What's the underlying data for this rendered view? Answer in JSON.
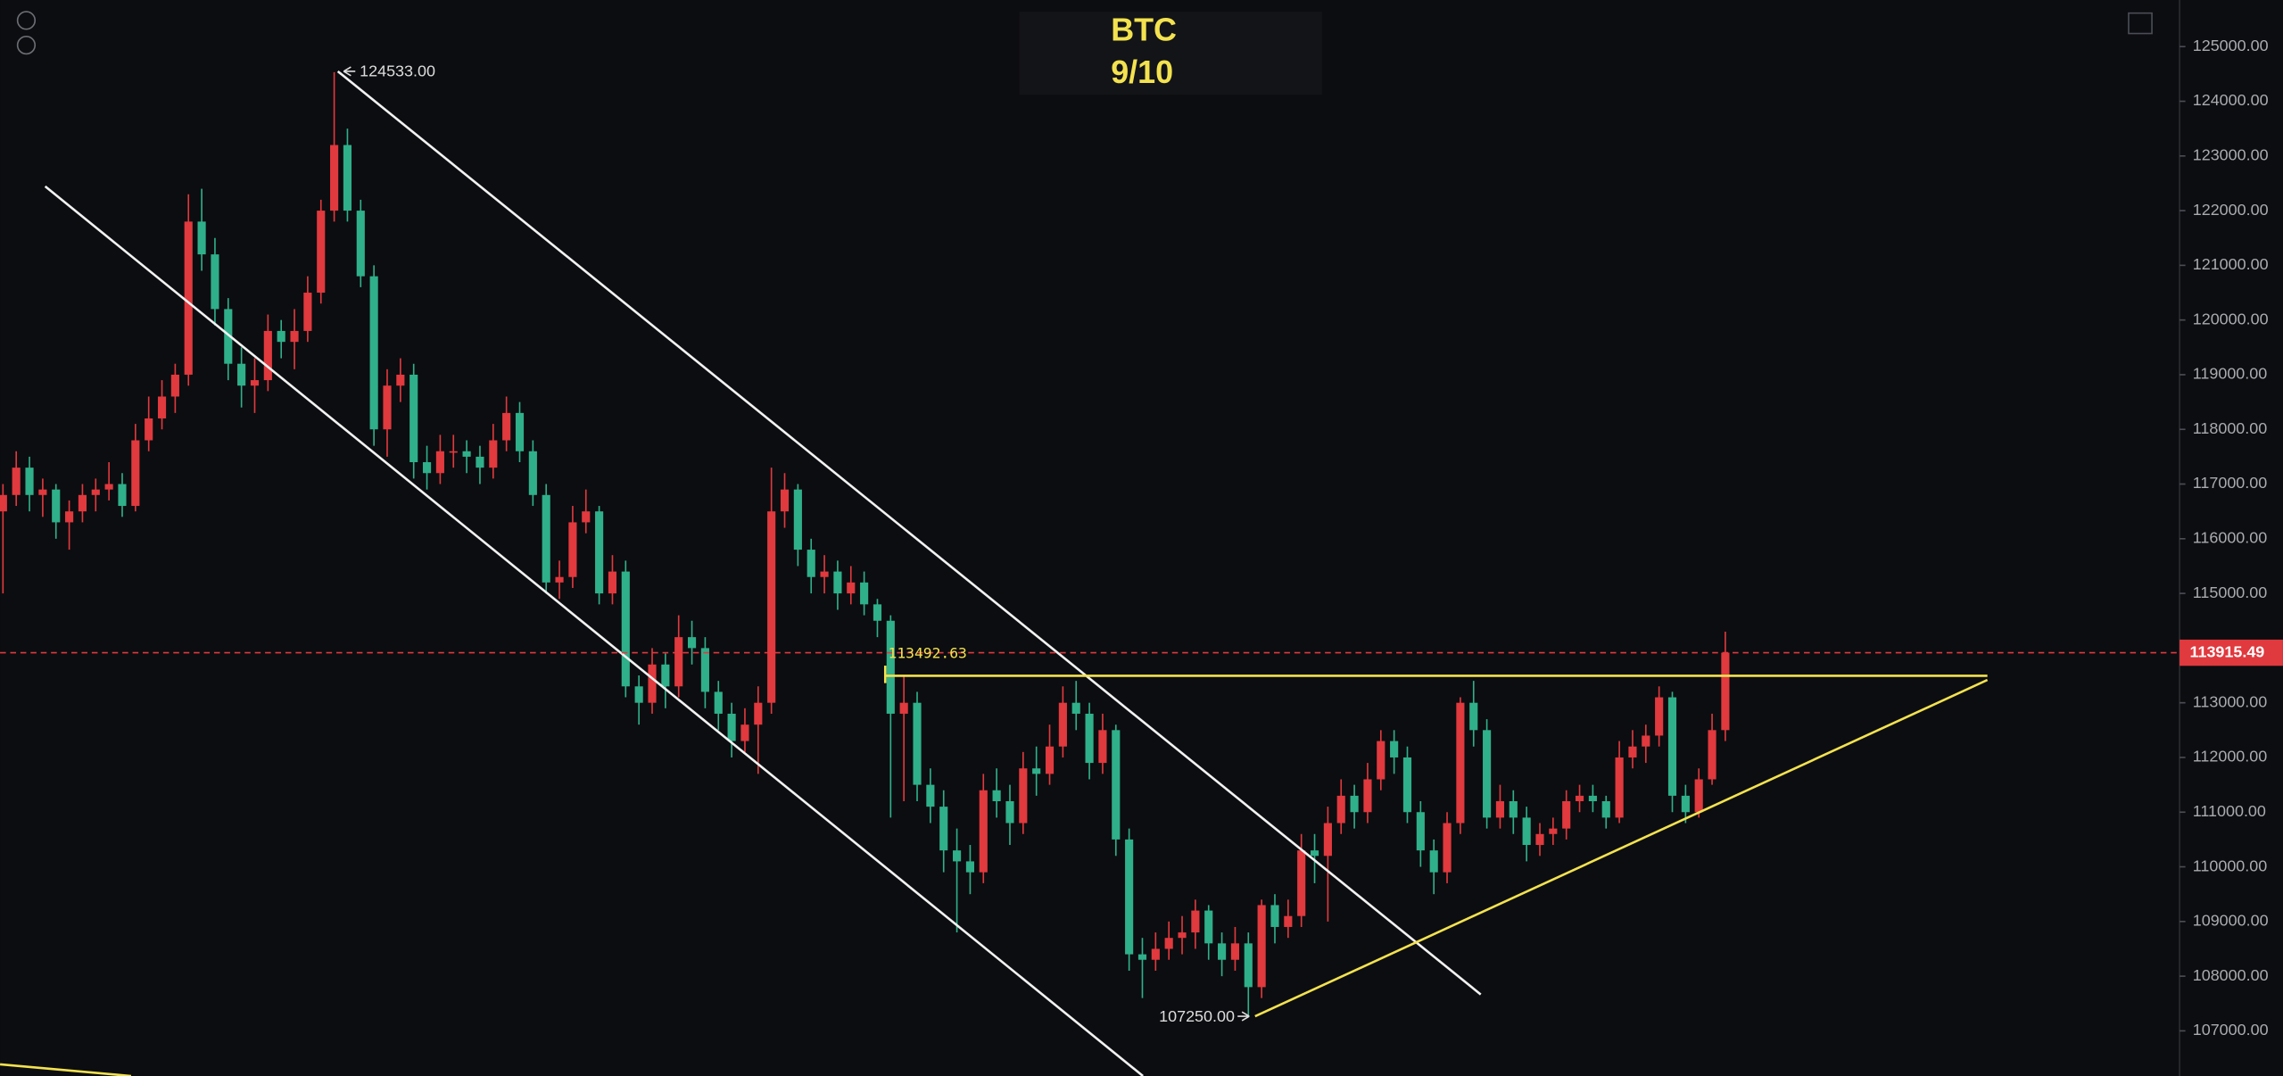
{
  "chart_data": {
    "type": "candlestick",
    "title": "BTC",
    "subtitle": "9/10",
    "up_color": "#e0393e",
    "down_color": "#2fb08a",
    "ylim": [
      107000,
      125000
    ],
    "yticks": [
      {
        "value": 125000,
        "label": "125000.00"
      },
      {
        "value": 124000,
        "label": "124000.00"
      },
      {
        "value": 123000,
        "label": "123000.00"
      },
      {
        "value": 122000,
        "label": "122000.00"
      },
      {
        "value": 121000,
        "label": "121000.00"
      },
      {
        "value": 120000,
        "label": "120000.00"
      },
      {
        "value": 119000,
        "label": "119000.00"
      },
      {
        "value": 118000,
        "label": "118000.00"
      },
      {
        "value": 117000,
        "label": "117000.00"
      },
      {
        "value": 116000,
        "label": "116000.00"
      },
      {
        "value": 115000,
        "label": "115000.00"
      },
      {
        "value": 114000,
        "label": "114000.00"
      },
      {
        "value": 113000,
        "label": "113000.00"
      },
      {
        "value": 112000,
        "label": "112000.00"
      },
      {
        "value": 111000,
        "label": "111000.00"
      },
      {
        "value": 110000,
        "label": "110000.00"
      },
      {
        "value": 109000,
        "label": "109000.00"
      },
      {
        "value": 108000,
        "label": "108000.00"
      },
      {
        "value": 107000,
        "label": "107000.00"
      }
    ],
    "last_price": 113915.49,
    "resistance": 113492.63,
    "high_label": {
      "value": 124533,
      "label": "124533.00"
    },
    "low_label": {
      "value": 107250,
      "label": "107250.00"
    },
    "ohlc": [
      [
        116500,
        117000,
        115000,
        116800
      ],
      [
        116800,
        117600,
        116600,
        117300
      ],
      [
        117300,
        117500,
        116500,
        116800
      ],
      [
        116800,
        117100,
        116400,
        116900
      ],
      [
        116900,
        117000,
        116000,
        116300
      ],
      [
        116300,
        116700,
        115800,
        116500
      ],
      [
        116500,
        117000,
        116300,
        116800
      ],
      [
        116800,
        117100,
        116500,
        116900
      ],
      [
        116900,
        117400,
        116700,
        117000
      ],
      [
        117000,
        117200,
        116400,
        116600
      ],
      [
        116600,
        118100,
        116500,
        117800
      ],
      [
        117800,
        118600,
        117600,
        118200
      ],
      [
        118200,
        118900,
        118000,
        118600
      ],
      [
        118600,
        119200,
        118300,
        119000
      ],
      [
        119000,
        122300,
        118800,
        121800
      ],
      [
        121800,
        122400,
        120900,
        121200
      ],
      [
        121200,
        121500,
        119900,
        120200
      ],
      [
        120200,
        120400,
        118900,
        119200
      ],
      [
        119200,
        119500,
        118400,
        118800
      ],
      [
        118800,
        119300,
        118300,
        118900
      ],
      [
        118900,
        120100,
        118700,
        119800
      ],
      [
        119800,
        120000,
        119300,
        119600
      ],
      [
        119600,
        120200,
        119100,
        119800
      ],
      [
        119800,
        120800,
        119600,
        120500
      ],
      [
        120500,
        122200,
        120300,
        122000
      ],
      [
        122000,
        124533,
        121800,
        123200
      ],
      [
        123200,
        123500,
        121800,
        122000
      ],
      [
        122000,
        122200,
        120600,
        120800
      ],
      [
        120800,
        121000,
        117700,
        118000
      ],
      [
        118000,
        119100,
        117500,
        118800
      ],
      [
        118800,
        119300,
        118500,
        119000
      ],
      [
        119000,
        119200,
        117100,
        117400
      ],
      [
        117400,
        117700,
        116900,
        117200
      ],
      [
        117200,
        117900,
        117000,
        117600
      ],
      [
        117600,
        117900,
        117300,
        117600
      ],
      [
        117600,
        117800,
        117200,
        117500
      ],
      [
        117500,
        117700,
        117000,
        117300
      ],
      [
        117300,
        118100,
        117100,
        117800
      ],
      [
        117800,
        118600,
        117600,
        118300
      ],
      [
        118300,
        118500,
        117400,
        117600
      ],
      [
        117600,
        117800,
        116600,
        116800
      ],
      [
        116800,
        117000,
        115000,
        115200
      ],
      [
        115200,
        115600,
        114900,
        115300
      ],
      [
        115300,
        116600,
        115100,
        116300
      ],
      [
        116300,
        116900,
        116100,
        116500
      ],
      [
        116500,
        116600,
        114800,
        115000
      ],
      [
        115000,
        115700,
        114800,
        115400
      ],
      [
        115400,
        115600,
        113100,
        113300
      ],
      [
        113300,
        113500,
        112600,
        113000
      ],
      [
        113000,
        114000,
        112800,
        113700
      ],
      [
        113700,
        113900,
        112900,
        113300
      ],
      [
        113300,
        114600,
        113100,
        114200
      ],
      [
        114200,
        114500,
        113700,
        114000
      ],
      [
        114000,
        114200,
        112900,
        113200
      ],
      [
        113200,
        113400,
        112500,
        112800
      ],
      [
        112800,
        113000,
        112000,
        112300
      ],
      [
        112300,
        112900,
        112100,
        112600
      ],
      [
        112600,
        113300,
        111700,
        113000
      ],
      [
        113000,
        117300,
        112800,
        116500
      ],
      [
        116500,
        117200,
        116200,
        116900
      ],
      [
        116900,
        117000,
        115500,
        115800
      ],
      [
        115800,
        116000,
        115000,
        115300
      ],
      [
        115300,
        115700,
        115000,
        115400
      ],
      [
        115400,
        115600,
        114700,
        115000
      ],
      [
        115000,
        115500,
        114800,
        115200
      ],
      [
        115200,
        115400,
        114600,
        114800
      ],
      [
        114800,
        114900,
        114200,
        114500
      ],
      [
        114500,
        114600,
        110900,
        112800
      ],
      [
        112800,
        113500,
        111200,
        113000
      ],
      [
        113000,
        113200,
        111200,
        111500
      ],
      [
        111500,
        111800,
        110800,
        111100
      ],
      [
        111100,
        111400,
        109900,
        110300
      ],
      [
        110300,
        110700,
        108800,
        110100
      ],
      [
        110100,
        110400,
        109500,
        109900
      ],
      [
        109900,
        111700,
        109700,
        111400
      ],
      [
        111400,
        111800,
        110900,
        111200
      ],
      [
        111200,
        111500,
        110400,
        110800
      ],
      [
        110800,
        112100,
        110600,
        111800
      ],
      [
        111800,
        112200,
        111300,
        111700
      ],
      [
        111700,
        112600,
        111500,
        112200
      ],
      [
        112200,
        113300,
        112000,
        113000
      ],
      [
        113000,
        113400,
        112500,
        112800
      ],
      [
        112800,
        113000,
        111600,
        111900
      ],
      [
        111900,
        112800,
        111700,
        112500
      ],
      [
        112500,
        112600,
        110200,
        110500
      ],
      [
        110500,
        110700,
        108100,
        108400
      ],
      [
        108400,
        108700,
        107600,
        108300
      ],
      [
        108300,
        108800,
        108100,
        108500
      ],
      [
        108500,
        109000,
        108300,
        108700
      ],
      [
        108700,
        109100,
        108400,
        108800
      ],
      [
        108800,
        109400,
        108500,
        109200
      ],
      [
        109200,
        109300,
        108300,
        108600
      ],
      [
        108600,
        108800,
        108000,
        108300
      ],
      [
        108300,
        108900,
        108100,
        108600
      ],
      [
        108600,
        108800,
        107250,
        107800
      ],
      [
        107800,
        109400,
        107600,
        109300
      ],
      [
        109300,
        109500,
        108600,
        108900
      ],
      [
        108900,
        109400,
        108700,
        109100
      ],
      [
        109100,
        110600,
        108900,
        110300
      ],
      [
        110300,
        110600,
        109700,
        110200
      ],
      [
        110200,
        111100,
        109000,
        110800
      ],
      [
        110800,
        111600,
        110600,
        111300
      ],
      [
        111300,
        111500,
        110700,
        111000
      ],
      [
        111000,
        111900,
        110800,
        111600
      ],
      [
        111600,
        112500,
        111400,
        112300
      ],
      [
        112300,
        112500,
        111700,
        112000
      ],
      [
        112000,
        112200,
        110800,
        111000
      ],
      [
        111000,
        111200,
        110000,
        110300
      ],
      [
        110300,
        110500,
        109500,
        109900
      ],
      [
        109900,
        111000,
        109700,
        110800
      ],
      [
        110800,
        113100,
        110600,
        113000
      ],
      [
        113000,
        113400,
        112200,
        112500
      ],
      [
        112500,
        112700,
        110700,
        110900
      ],
      [
        110900,
        111500,
        110700,
        111200
      ],
      [
        111200,
        111400,
        110600,
        110900
      ],
      [
        110900,
        111100,
        110100,
        110400
      ],
      [
        110400,
        110800,
        110200,
        110600
      ],
      [
        110600,
        110900,
        110400,
        110700
      ],
      [
        110700,
        111400,
        110500,
        111200
      ],
      [
        111200,
        111500,
        111000,
        111300
      ],
      [
        111300,
        111500,
        111000,
        111200
      ],
      [
        111200,
        111300,
        110700,
        110900
      ],
      [
        110900,
        112300,
        110800,
        112000
      ],
      [
        112000,
        112500,
        111800,
        112200
      ],
      [
        112200,
        112600,
        111900,
        112400
      ],
      [
        112400,
        113300,
        112200,
        113100
      ],
      [
        113100,
        113200,
        111000,
        111300
      ],
      [
        111300,
        111500,
        110800,
        111000
      ],
      [
        111000,
        111800,
        110900,
        111600
      ],
      [
        111600,
        112800,
        111500,
        112500
      ],
      [
        112500,
        114300,
        112300,
        113915.49
      ]
    ]
  }
}
